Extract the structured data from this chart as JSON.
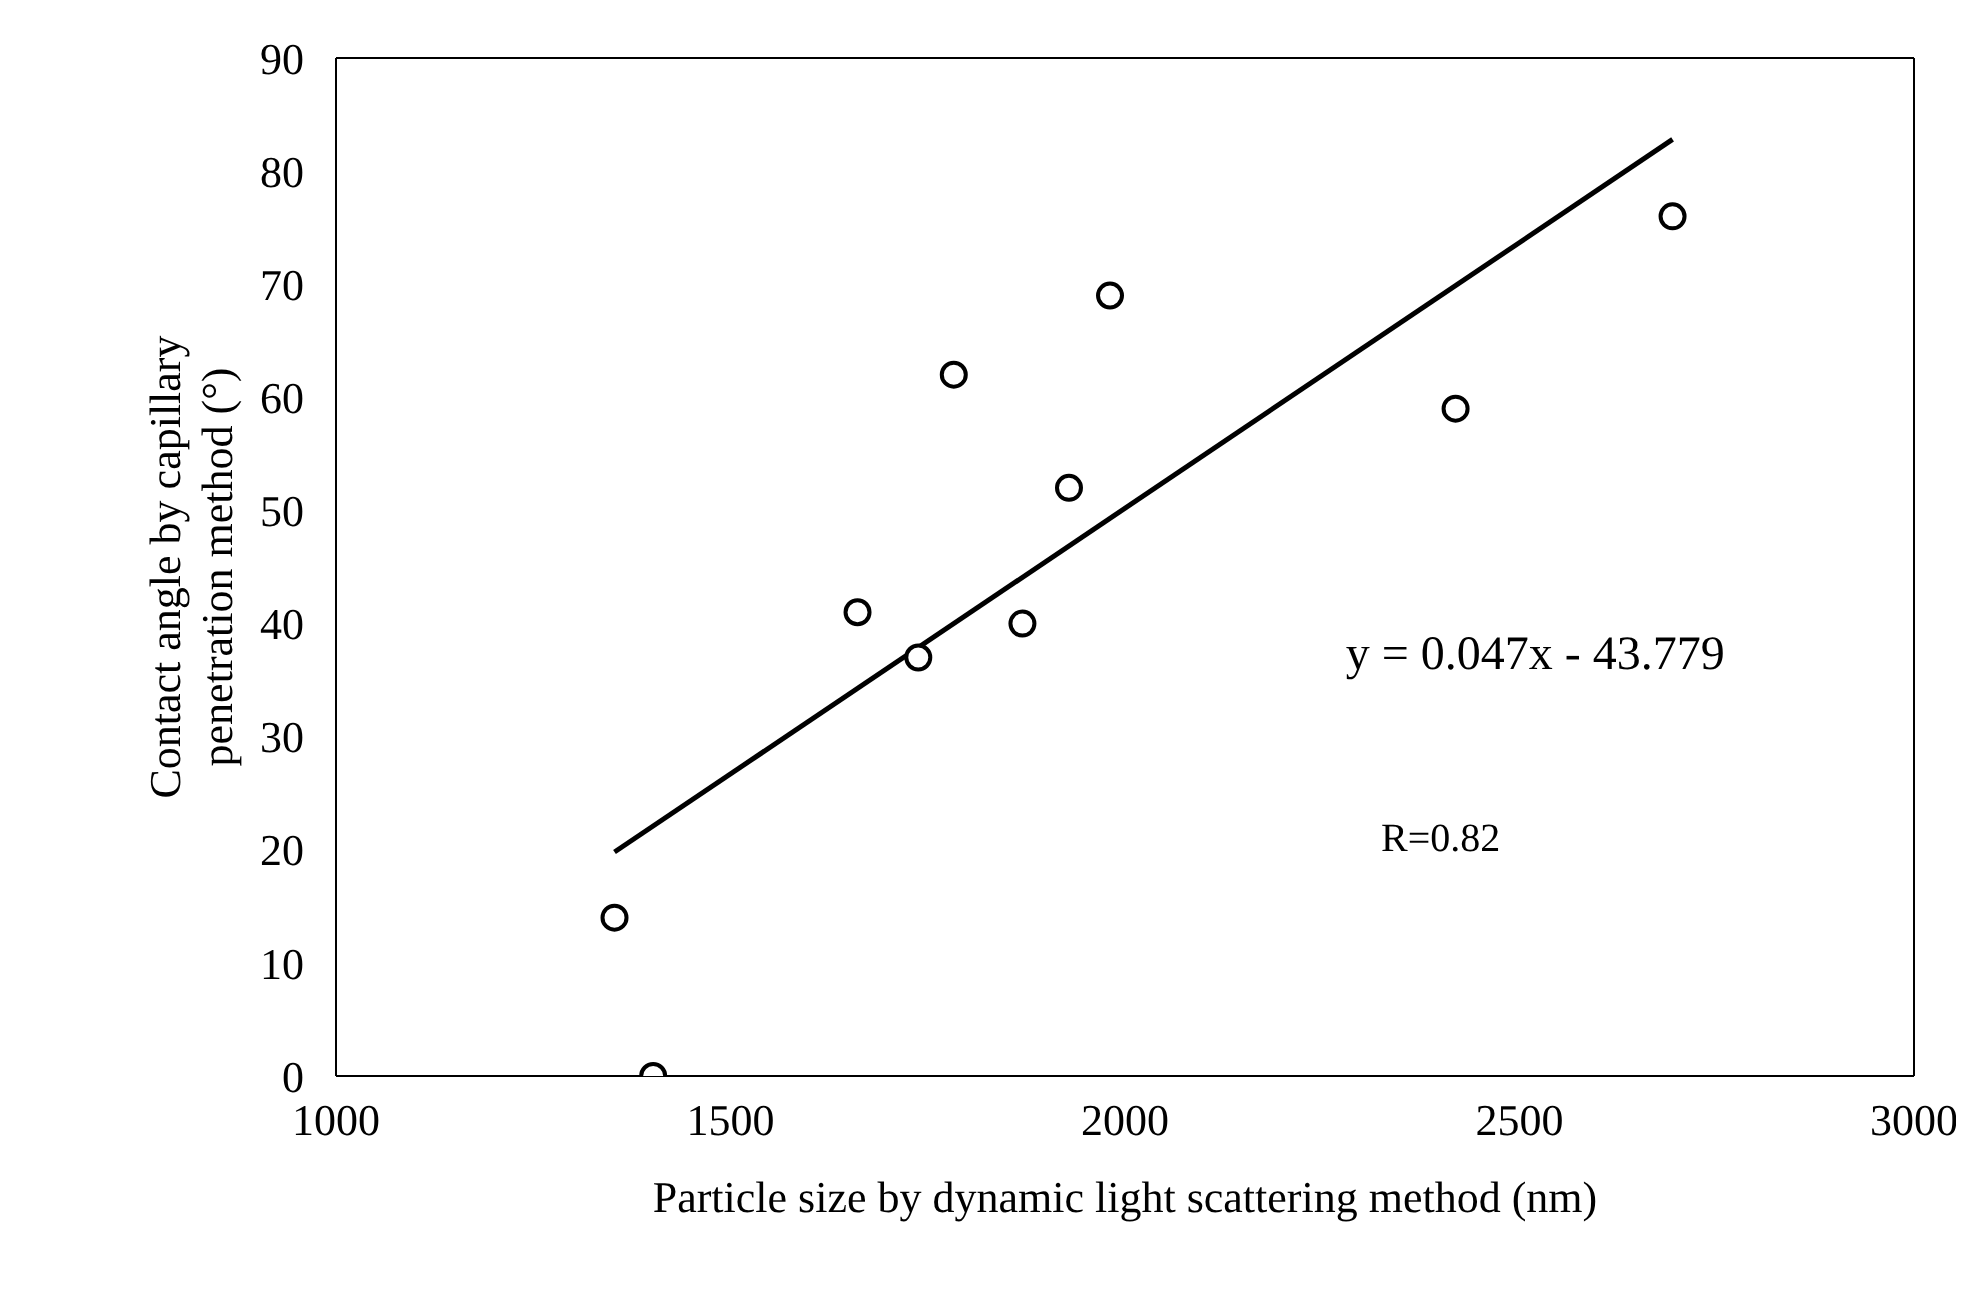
{
  "chart_data": {
    "type": "scatter",
    "xlabel": "Particle size by dynamic light scattering method (nm)",
    "ylabel": "Contact angle by capillary penetration method (°)",
    "xlim": [
      1000,
      3000
    ],
    "xticks": [
      1000,
      1500,
      2000,
      2500,
      3000
    ],
    "ylim": [
      0,
      90
    ],
    "yticks": [
      0,
      10,
      20,
      30,
      40,
      50,
      60,
      70,
      80,
      90
    ],
    "series": [
      {
        "color": "#000000",
        "marker": "circle",
        "x": [
          1353,
          1402,
          1661,
          1738,
          1783,
          1870,
          1929,
          1981,
          2419,
          2694
        ],
        "values": [
          14,
          0,
          41,
          37,
          62,
          40,
          52,
          69,
          59,
          76
        ]
      },
      {
        "type": "line",
        "color": "#000000",
        "marker": "none",
        "line_style": "solid",
        "x": [
          1353,
          2694
        ],
        "values": [
          19.8,
          82.8
        ]
      }
    ],
    "annotations": [
      "y = 0.047x - 43.779",
      "R=0.82"
    ]
  }
}
